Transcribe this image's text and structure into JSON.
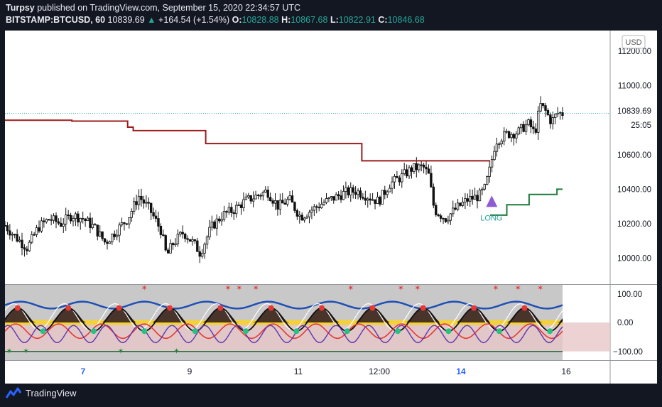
{
  "header": {
    "author": "Turpsy",
    "published_text": "published on TradingView.com, September 15, 2020 22:34:57 UTC"
  },
  "symbol_bar": {
    "symbol": "BITSTAMP:BTCUSD, 60",
    "last": "10839.69",
    "change_arrow": "▲",
    "change": "+164.54 (+1.54%)",
    "o_label": "O:",
    "o_value": "10828.88",
    "h_label": "H:",
    "h_value": "10867.68",
    "l_label": "L:",
    "l_value": "10822.91",
    "c_label": "C:",
    "c_value": "10846.68"
  },
  "currency_badge": "USD",
  "price_axis": {
    "ticks": [
      "11200.00",
      "11000.00",
      "10800.00",
      "10600.00",
      "10400.00",
      "10200.00",
      "10000.00"
    ],
    "current_price": "10839.69",
    "countdown": "25:05"
  },
  "osc_axis": {
    "ticks": [
      "100.00",
      "0.00",
      "−100.00"
    ]
  },
  "time_axis": {
    "labels": [
      "7",
      "9",
      "11",
      "12:00",
      "14",
      "16"
    ],
    "bold": [
      true,
      false,
      false,
      false,
      true,
      false
    ]
  },
  "signal": {
    "label": "LONG"
  },
  "footer": {
    "brand": "TradingView",
    "logo_icon": "tradingview-logo-icon"
  },
  "colors": {
    "background": "#131722",
    "main_pane": "#ffffff",
    "osc_pane": "#c8c8c8",
    "resistance_line": "#9c1c1c",
    "support_line": "#1e7a3a",
    "long_marker": "#8e5bd6",
    "positive": "#26a69a",
    "text": "#e8eaf0"
  },
  "chart_data": {
    "type": "candlestick",
    "symbol": "BITSTAMP:BTCUSD",
    "interval": "60",
    "ylim": [
      9850,
      11320
    ],
    "yticks": [
      10000,
      10200,
      10400,
      10600,
      10800,
      11000,
      11200
    ],
    "resistance_steps": [
      {
        "from": 0,
        "to": 0.12,
        "value": 10800
      },
      {
        "from": 0.12,
        "to": 0.22,
        "value": 10795
      },
      {
        "from": 0.22,
        "to": 0.23,
        "value": 10760
      },
      {
        "from": 0.23,
        "to": 0.36,
        "value": 10740
      },
      {
        "from": 0.36,
        "to": 0.64,
        "value": 10665
      },
      {
        "from": 0.64,
        "to": 0.87,
        "value": 10565
      }
    ],
    "support_steps": [
      {
        "from": 0.87,
        "to": 0.9,
        "value": 10250
      },
      {
        "from": 0.9,
        "to": 0.94,
        "value": 10310
      },
      {
        "from": 0.94,
        "to": 0.99,
        "value": 10370
      },
      {
        "from": 0.99,
        "to": 1.0,
        "value": 10400
      }
    ],
    "close_path": [
      [
        0,
        10190
      ],
      [
        0.02,
        10120
      ],
      [
        0.04,
        10060
      ],
      [
        0.06,
        10180
      ],
      [
        0.08,
        10230
      ],
      [
        0.1,
        10200
      ],
      [
        0.12,
        10250
      ],
      [
        0.14,
        10230
      ],
      [
        0.16,
        10180
      ],
      [
        0.18,
        10090
      ],
      [
        0.2,
        10160
      ],
      [
        0.22,
        10230
      ],
      [
        0.24,
        10360
      ],
      [
        0.26,
        10280
      ],
      [
        0.28,
        10160
      ],
      [
        0.29,
        10010
      ],
      [
        0.3,
        10080
      ],
      [
        0.32,
        10150
      ],
      [
        0.34,
        10080
      ],
      [
        0.35,
        10030
      ],
      [
        0.37,
        10180
      ],
      [
        0.39,
        10250
      ],
      [
        0.41,
        10280
      ],
      [
        0.43,
        10330
      ],
      [
        0.45,
        10360
      ],
      [
        0.47,
        10390
      ],
      [
        0.49,
        10300
      ],
      [
        0.51,
        10340
      ],
      [
        0.53,
        10240
      ],
      [
        0.55,
        10280
      ],
      [
        0.57,
        10320
      ],
      [
        0.59,
        10350
      ],
      [
        0.61,
        10380
      ],
      [
        0.63,
        10390
      ],
      [
        0.65,
        10360
      ],
      [
        0.67,
        10330
      ],
      [
        0.69,
        10430
      ],
      [
        0.71,
        10470
      ],
      [
        0.73,
        10520
      ],
      [
        0.75,
        10530
      ],
      [
        0.76,
        10480
      ],
      [
        0.77,
        10280
      ],
      [
        0.79,
        10230
      ],
      [
        0.81,
        10290
      ],
      [
        0.83,
        10340
      ],
      [
        0.85,
        10360
      ],
      [
        0.86,
        10400
      ],
      [
        0.87,
        10520
      ],
      [
        0.88,
        10680
      ],
      [
        0.9,
        10720
      ],
      [
        0.92,
        10730
      ],
      [
        0.93,
        10760
      ],
      [
        0.94,
        10780
      ],
      [
        0.95,
        10720
      ],
      [
        0.96,
        10890
      ],
      [
        0.97,
        10850
      ],
      [
        0.98,
        10790
      ],
      [
        0.99,
        10840
      ],
      [
        1.0,
        10840
      ]
    ],
    "oscillator": {
      "ylim": [
        -130,
        130
      ],
      "levels": [
        100,
        0,
        -100
      ],
      "sell_signal_positions": [
        0.25,
        0.4,
        0.42,
        0.45,
        0.62,
        0.71,
        0.74,
        0.88,
        0.92,
        0.96
      ],
      "buy_signal_positions": [
        0.0,
        0.03,
        0.2,
        0.3
      ]
    }
  }
}
